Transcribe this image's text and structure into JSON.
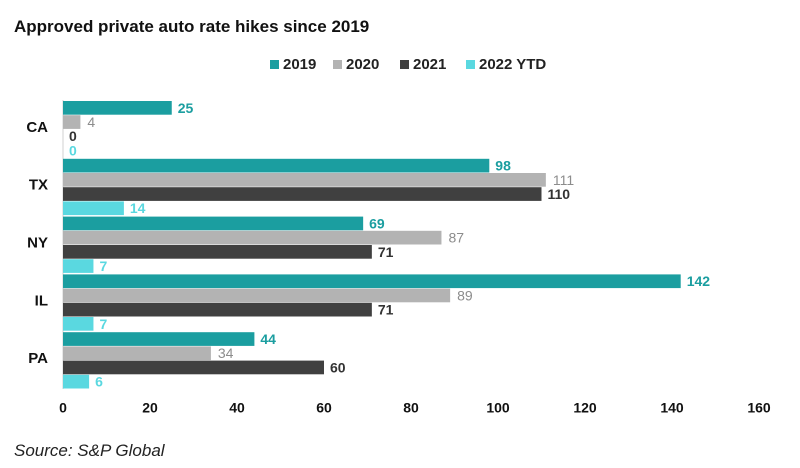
{
  "chart_data": {
    "type": "bar",
    "orientation": "horizontal",
    "title": "Approved private auto rate hikes since 2019",
    "xlabel": "",
    "ylabel": "",
    "xlim": [
      0,
      160
    ],
    "xticks": [
      0,
      20,
      40,
      60,
      80,
      100,
      120,
      140,
      160
    ],
    "grid": false,
    "legend_position": "top",
    "categories": [
      "CA",
      "TX",
      "NY",
      "IL",
      "PA"
    ],
    "series": [
      {
        "name": "2019",
        "color": "#1b9ea0",
        "label_color": "#1b9ea0",
        "values": [
          25,
          98,
          69,
          142,
          44
        ]
      },
      {
        "name": "2020",
        "color": "#b3b3b3",
        "label_color": "#8c8c8c",
        "values": [
          4,
          111,
          87,
          89,
          34
        ]
      },
      {
        "name": "2021",
        "color": "#404040",
        "label_color": "#333333",
        "values": [
          0,
          110,
          71,
          71,
          60
        ]
      },
      {
        "name": "2022 YTD",
        "color": "#5ad8e0",
        "label_color": "#5ad8e0",
        "values": [
          0,
          14,
          7,
          7,
          6
        ]
      }
    ],
    "source": "Source: S&P Global"
  }
}
